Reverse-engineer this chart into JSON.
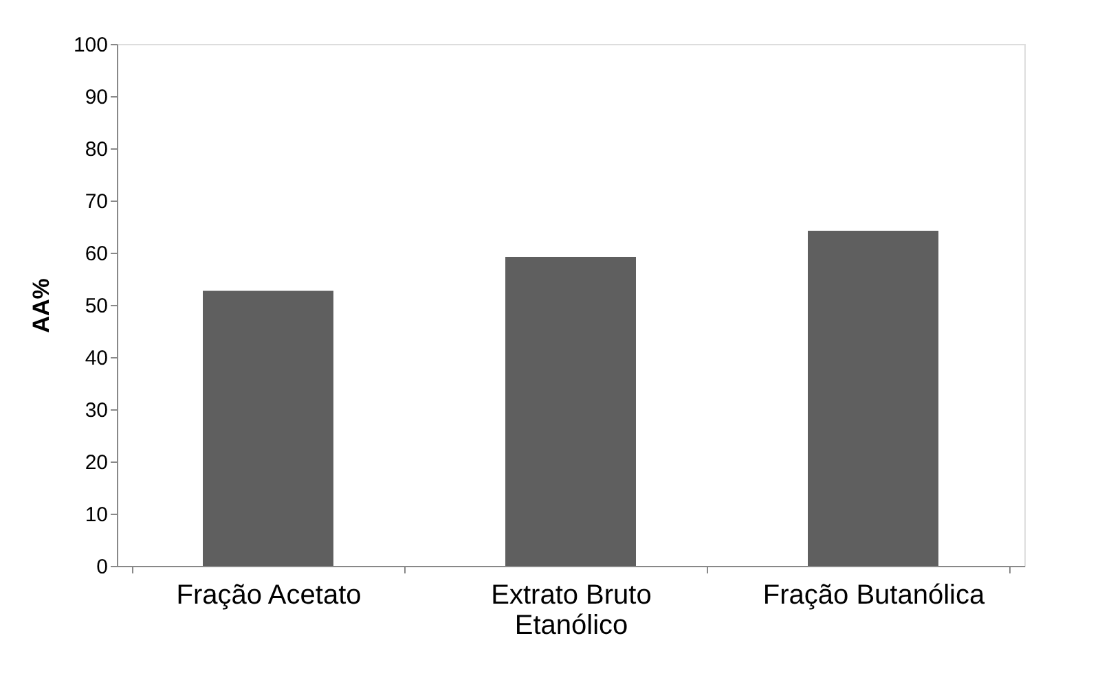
{
  "chart_data": {
    "type": "bar",
    "ylabel": "AA%",
    "categories": [
      "Fração Acetato",
      "Extrato Bruto Etanólico",
      "Fração Butanólica"
    ],
    "values": [
      52.7,
      59.2,
      64.2
    ],
    "color": "#5f5f5f",
    "ylim": [
      0,
      100
    ],
    "yticks": [
      0,
      10,
      20,
      30,
      40,
      50,
      60,
      70,
      80,
      90,
      100
    ],
    "grid": false
  }
}
